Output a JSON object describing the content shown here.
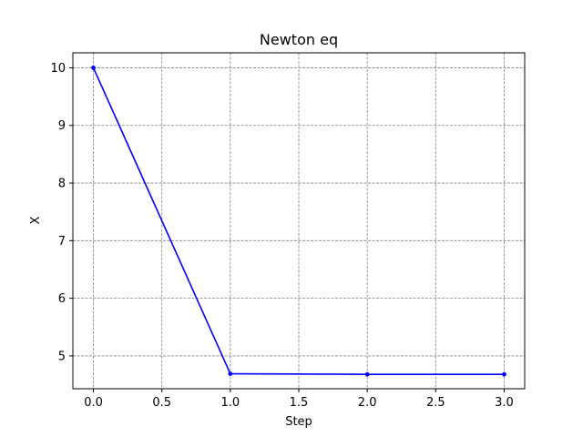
{
  "chart_data": {
    "type": "line",
    "title": "Newton eq",
    "xlabel": "Step",
    "ylabel": "X",
    "x": [
      0,
      1,
      2,
      3
    ],
    "series": [
      {
        "values": [
          10.0,
          4.69,
          4.68,
          4.68
        ],
        "color": "#0000ff",
        "marker": "circle"
      }
    ],
    "xlim": [
      -0.15,
      3.15
    ],
    "ylim": [
      4.43,
      10.26
    ],
    "xticks": [
      0.0,
      0.5,
      1.0,
      1.5,
      2.0,
      2.5,
      3.0
    ],
    "xtick_labels": [
      "0.0",
      "0.5",
      "1.0",
      "1.5",
      "2.0",
      "2.5",
      "3.0"
    ],
    "yticks": [
      5,
      6,
      7,
      8,
      9,
      10
    ],
    "ytick_labels": [
      "5",
      "6",
      "7",
      "8",
      "9",
      "10"
    ],
    "grid": true,
    "grid_color": "#808080",
    "grid_style": "dashed",
    "legend": false
  }
}
